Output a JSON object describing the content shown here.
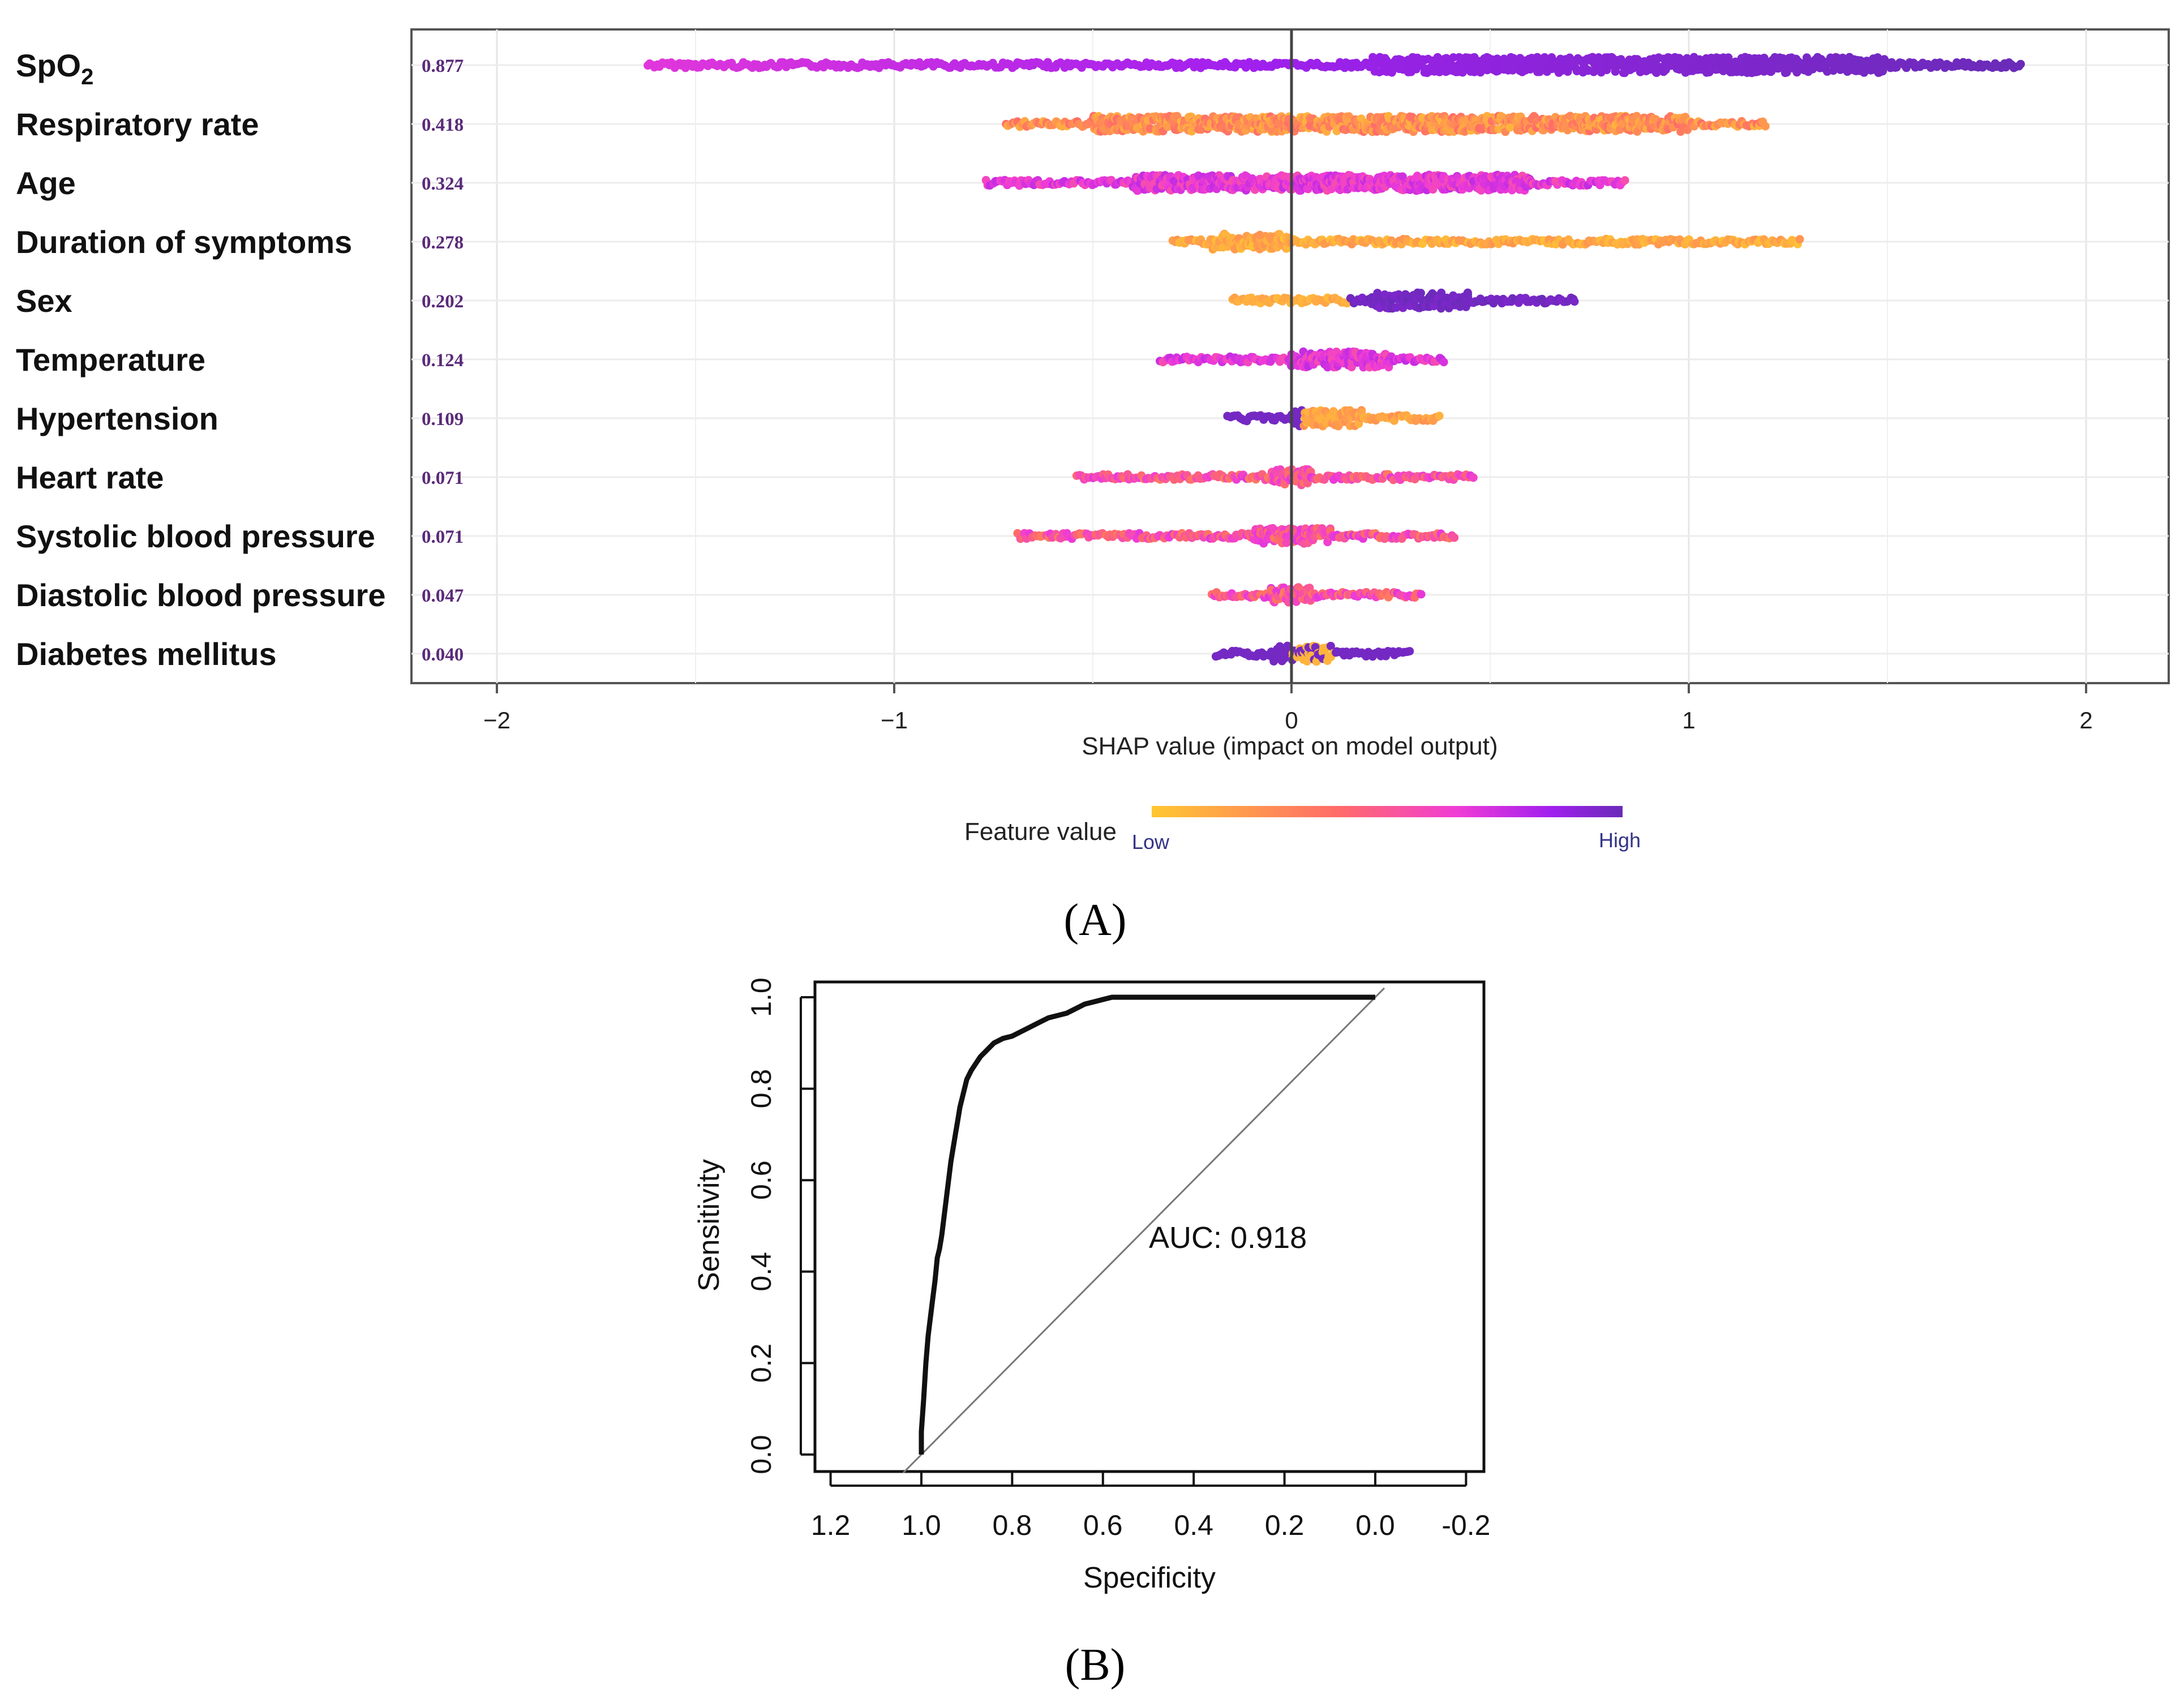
{
  "chart_data": [
    {
      "type": "scatter",
      "panel": "A",
      "xlabel": "SHAP value (impact on model output)",
      "xlim": [
        -2.2,
        2.2
      ],
      "x_ticks": [
        -2,
        -1,
        0,
        1,
        2
      ],
      "x_tick_labels": [
        "−2",
        "−1",
        "0",
        "1",
        "2"
      ],
      "legend": {
        "title": "Feature value",
        "low_label": "Low",
        "high_label": "High",
        "gradient": [
          "#ffc732",
          "#ff6a6a",
          "#f03cd6",
          "#a020ee",
          "#6a2bb8"
        ]
      },
      "features": [
        {
          "name": "SpO",
          "subscript": "2",
          "importance": "0.877",
          "range": [
            -1.62,
            1.84
          ],
          "low_side": "negative",
          "core": [
            0.2,
            1.5
          ]
        },
        {
          "name": "Respiratory rate",
          "importance": "0.418",
          "range": [
            -0.72,
            1.2
          ],
          "low_side": "positive",
          "core": [
            -0.5,
            1.0
          ]
        },
        {
          "name": "Age",
          "importance": "0.324",
          "range": [
            -0.77,
            0.84
          ],
          "low_side": "mixed-pink",
          "core": [
            -0.4,
            0.6
          ]
        },
        {
          "name": "Duration of symptoms",
          "importance": "0.278",
          "range": [
            -0.3,
            1.28
          ],
          "low_side": "all-low",
          "core": [
            -0.2,
            0.0
          ]
        },
        {
          "name": "Sex",
          "importance": "0.202",
          "range": [
            -0.15,
            0.72
          ],
          "low_side": "split",
          "core": [
            0.2,
            0.45
          ]
        },
        {
          "name": "Temperature",
          "importance": "0.124",
          "range": [
            -0.33,
            0.39
          ],
          "low_side": "mixed-pink",
          "core": [
            0.0,
            0.25
          ]
        },
        {
          "name": "Hypertension",
          "importance": "0.109",
          "range": [
            -0.16,
            0.38
          ],
          "low_side": "split-reverse",
          "core": [
            0.0,
            0.18
          ]
        },
        {
          "name": "Heart rate",
          "importance": "0.071",
          "range": [
            -0.54,
            0.46
          ],
          "low_side": "mixed-orange",
          "core": [
            -0.05,
            0.05
          ]
        },
        {
          "name": "Systolic blood pressure",
          "importance": "0.071",
          "range": [
            -0.69,
            0.41
          ],
          "low_side": "mixed-orange",
          "core": [
            -0.1,
            0.1
          ]
        },
        {
          "name": "Diastolic blood pressure",
          "importance": "0.047",
          "range": [
            -0.2,
            0.33
          ],
          "low_side": "mixed-orange",
          "core": [
            -0.05,
            0.05
          ]
        },
        {
          "name": "Diabetes mellitus",
          "importance": "0.040",
          "range": [
            -0.19,
            0.3
          ],
          "low_side": "split-purple",
          "core": [
            -0.05,
            0.1
          ]
        }
      ]
    },
    {
      "type": "line",
      "panel": "B",
      "xlabel": "Specificity",
      "ylabel": "Sensitivity",
      "xlim": [
        1.2,
        -0.2
      ],
      "ylim": [
        0.0,
        1.0
      ],
      "x_tick_labels": [
        "1.2",
        "1.0",
        "0.8",
        "0.6",
        "0.4",
        "0.2",
        "0.0",
        "-0.2"
      ],
      "y_tick_labels": [
        "0.0",
        "0.2",
        "0.4",
        "0.6",
        "0.8",
        "1.0"
      ],
      "annotation": "AUC: 0.918",
      "series": [
        {
          "specificity": [
            1.0,
            1.0,
            0.995,
            0.99,
            0.985,
            0.98,
            0.975,
            0.97,
            0.965,
            0.96,
            0.955,
            0.95,
            0.945,
            0.94,
            0.935,
            0.93,
            0.925,
            0.92,
            0.915,
            0.91,
            0.905,
            0.9,
            0.89,
            0.88,
            0.87,
            0.86,
            0.85,
            0.84,
            0.83,
            0.82,
            0.8,
            0.78,
            0.76,
            0.74,
            0.72,
            0.7,
            0.68,
            0.66,
            0.64,
            0.62,
            0.6,
            0.58,
            0.56,
            0.54,
            0.5,
            0.4,
            0.2,
            0.0
          ],
          "sensitivity": [
            0.0,
            0.05,
            0.12,
            0.2,
            0.26,
            0.3,
            0.34,
            0.38,
            0.43,
            0.45,
            0.48,
            0.52,
            0.56,
            0.6,
            0.64,
            0.67,
            0.7,
            0.73,
            0.76,
            0.78,
            0.8,
            0.82,
            0.84,
            0.855,
            0.87,
            0.88,
            0.89,
            0.9,
            0.905,
            0.91,
            0.915,
            0.925,
            0.935,
            0.945,
            0.955,
            0.96,
            0.965,
            0.975,
            0.985,
            0.99,
            0.995,
            1.0,
            1.0,
            1.0,
            1.0,
            1.0,
            1.0,
            1.0
          ]
        }
      ]
    }
  ],
  "panel_labels": {
    "a": "(A)",
    "b": "(B)"
  }
}
